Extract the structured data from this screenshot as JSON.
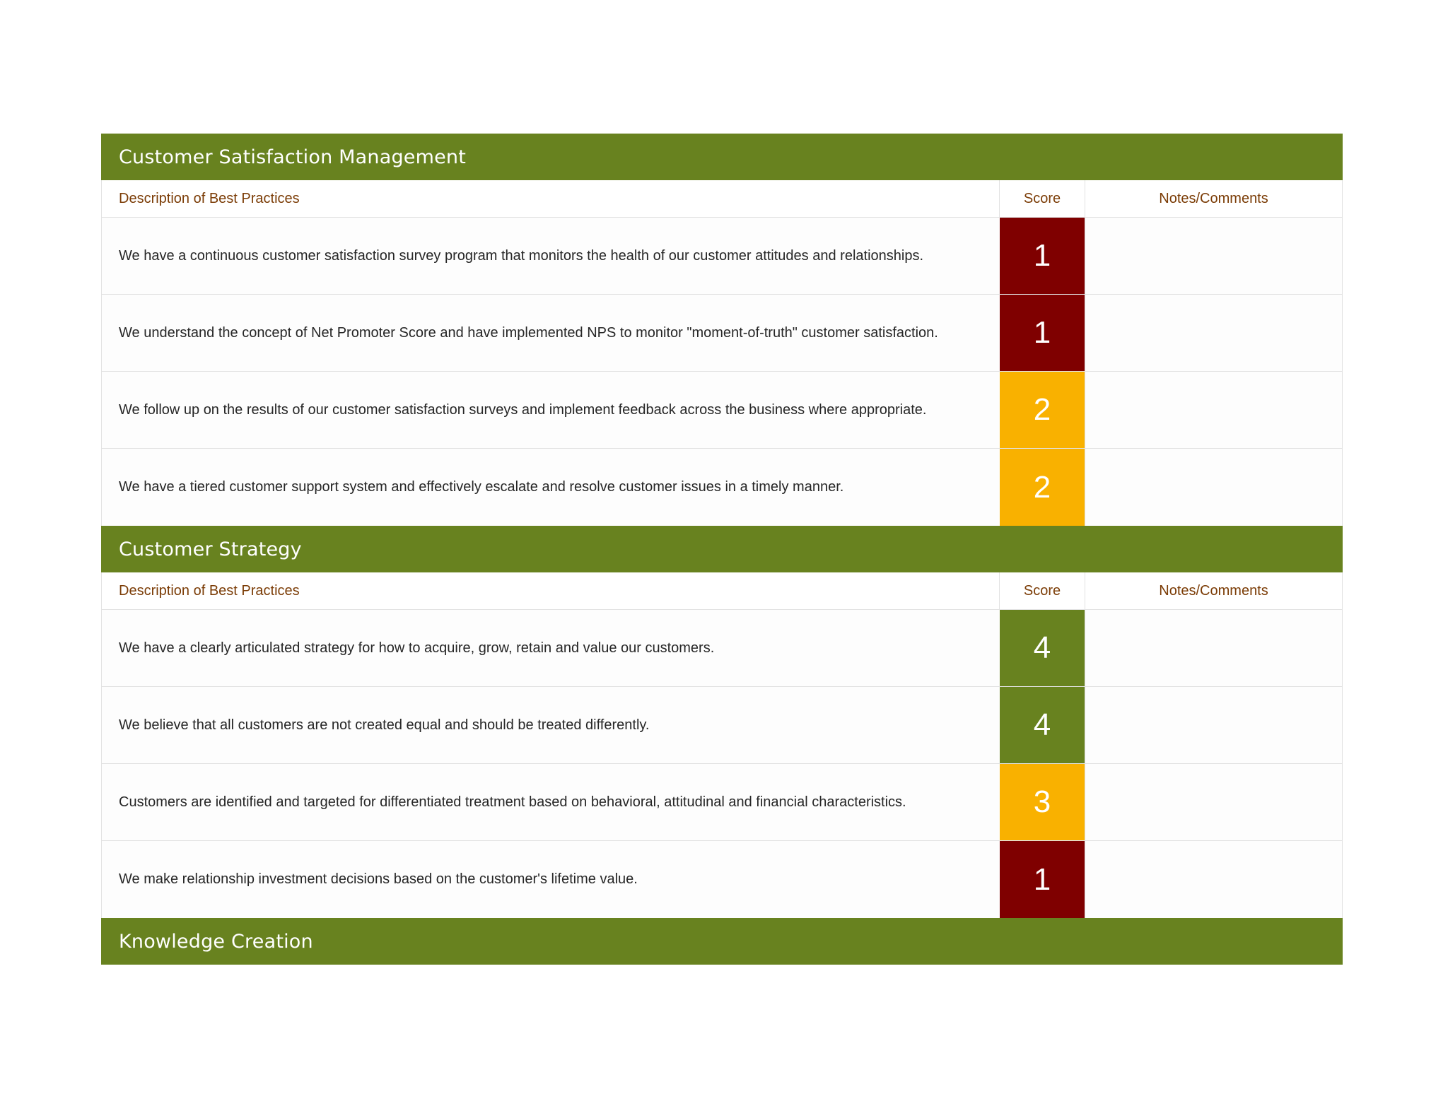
{
  "colors": {
    "section_bar": "#68821f",
    "header_text": "#7b3c06",
    "score_1": "#7f0000",
    "score_2_3": "#f9b100",
    "score_4": "#68821f"
  },
  "sections": [
    {
      "title": "Customer Satisfaction Management",
      "headers": {
        "description": "Description of Best Practices",
        "score": "Score",
        "notes": "Notes/Comments"
      },
      "rows": [
        {
          "description": "We have a continuous customer satisfaction survey program that monitors the health of our customer attitudes and relationships.",
          "score": "1",
          "notes": ""
        },
        {
          "description": "We understand the concept of Net Promoter Score and have implemented NPS to monitor \"moment-of-truth\" customer satisfaction.",
          "score": "1",
          "notes": ""
        },
        {
          "description": "We follow up on the results of  our customer satisfaction surveys and implement feedback across the business where appropriate.",
          "score": "2",
          "notes": ""
        },
        {
          "description": "We have a tiered customer support system and effectively escalate and resolve customer issues in a timely manner.",
          "score": "2",
          "notes": ""
        }
      ]
    },
    {
      "title": "Customer Strategy",
      "headers": {
        "description": "Description of Best Practices",
        "score": "Score",
        "notes": "Notes/Comments"
      },
      "rows": [
        {
          "description": "We have a clearly articulated strategy for how to acquire, grow, retain and value our customers.",
          "score": "4",
          "notes": ""
        },
        {
          "description": "We believe that all customers are not created equal and should be treated differently.",
          "score": "4",
          "notes": ""
        },
        {
          "description": "Customers are identified and targeted for differentiated treatment based on behavioral, attitudinal and financial characteristics.",
          "score": "3",
          "notes": ""
        },
        {
          "description": "We make relationship investment decisions based on the customer's lifetime value.",
          "score": "1",
          "notes": ""
        }
      ]
    },
    {
      "title": "Knowledge Creation"
    }
  ]
}
